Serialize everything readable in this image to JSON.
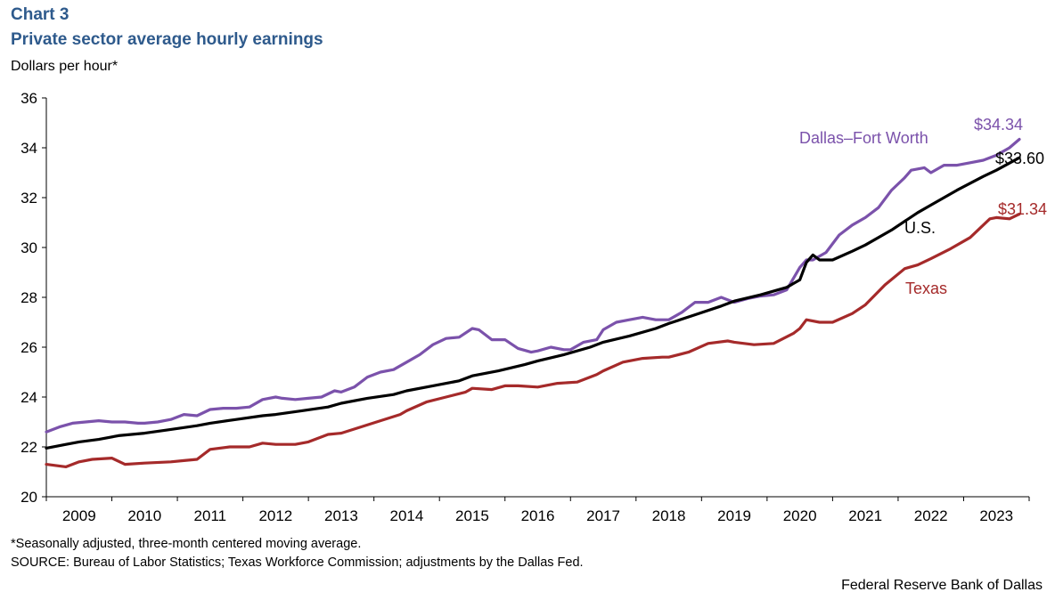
{
  "header": {
    "chart_number": "Chart 3",
    "title": "Private sector average hourly earnings",
    "y_unit": "Dollars per hour*"
  },
  "footer": {
    "footnote": "*Seasonally adjusted, three-month centered moving average.",
    "source": "SOURCE: Bureau of Labor Statistics; Texas Workforce Commission; adjustments by the Dallas Fed.",
    "credit": "Federal Reserve Bank of Dallas"
  },
  "chart_data": {
    "type": "line",
    "title": "Private sector average hourly earnings",
    "ylabel": "Dollars per hour*",
    "xlabel": "",
    "ylim": [
      20,
      36
    ],
    "y_ticks": [
      20,
      22,
      24,
      26,
      28,
      30,
      32,
      34,
      36
    ],
    "x_range": [
      2008.5,
      2023.5
    ],
    "x_tick_labels": [
      "2009",
      "2010",
      "2011",
      "2012",
      "2013",
      "2014",
      "2015",
      "2016",
      "2017",
      "2018",
      "2019",
      "2020",
      "2021",
      "2022",
      "2023"
    ],
    "grid": false,
    "series": [
      {
        "name": "Dallas–Fort Worth",
        "label": "Dallas–Fort Worth",
        "end_label": "$34.34",
        "color": "#7b52ab",
        "points": [
          [
            2008.5,
            22.6
          ],
          [
            2008.7,
            22.8
          ],
          [
            2008.9,
            22.95
          ],
          [
            2009.1,
            23.0
          ],
          [
            2009.3,
            23.05
          ],
          [
            2009.5,
            23.0
          ],
          [
            2009.7,
            23.0
          ],
          [
            2009.9,
            22.95
          ],
          [
            2010.0,
            22.95
          ],
          [
            2010.2,
            23.0
          ],
          [
            2010.4,
            23.1
          ],
          [
            2010.6,
            23.3
          ],
          [
            2010.8,
            23.25
          ],
          [
            2011.0,
            23.5
          ],
          [
            2011.2,
            23.55
          ],
          [
            2011.4,
            23.55
          ],
          [
            2011.6,
            23.6
          ],
          [
            2011.8,
            23.9
          ],
          [
            2012.0,
            24.0
          ],
          [
            2012.1,
            23.95
          ],
          [
            2012.3,
            23.9
          ],
          [
            2012.5,
            23.95
          ],
          [
            2012.7,
            24.0
          ],
          [
            2012.9,
            24.25
          ],
          [
            2013.0,
            24.2
          ],
          [
            2013.2,
            24.4
          ],
          [
            2013.4,
            24.8
          ],
          [
            2013.6,
            25.0
          ],
          [
            2013.8,
            25.1
          ],
          [
            2014.0,
            25.4
          ],
          [
            2014.2,
            25.7
          ],
          [
            2014.4,
            26.1
          ],
          [
            2014.6,
            26.35
          ],
          [
            2014.8,
            26.4
          ],
          [
            2015.0,
            26.75
          ],
          [
            2015.1,
            26.7
          ],
          [
            2015.3,
            26.3
          ],
          [
            2015.5,
            26.3
          ],
          [
            2015.7,
            25.95
          ],
          [
            2015.9,
            25.8
          ],
          [
            2016.0,
            25.85
          ],
          [
            2016.2,
            26.0
          ],
          [
            2016.4,
            25.9
          ],
          [
            2016.5,
            25.9
          ],
          [
            2016.7,
            26.2
          ],
          [
            2016.9,
            26.3
          ],
          [
            2017.0,
            26.7
          ],
          [
            2017.2,
            27.0
          ],
          [
            2017.4,
            27.1
          ],
          [
            2017.6,
            27.2
          ],
          [
            2017.8,
            27.1
          ],
          [
            2018.0,
            27.1
          ],
          [
            2018.2,
            27.4
          ],
          [
            2018.4,
            27.8
          ],
          [
            2018.6,
            27.8
          ],
          [
            2018.8,
            28.0
          ],
          [
            2019.0,
            27.8
          ],
          [
            2019.2,
            27.95
          ],
          [
            2019.4,
            28.05
          ],
          [
            2019.6,
            28.1
          ],
          [
            2019.8,
            28.3
          ],
          [
            2020.0,
            29.2
          ],
          [
            2020.1,
            29.5
          ],
          [
            2020.2,
            29.5
          ],
          [
            2020.4,
            29.8
          ],
          [
            2020.6,
            30.5
          ],
          [
            2020.8,
            30.9
          ],
          [
            2021.0,
            31.2
          ],
          [
            2021.2,
            31.6
          ],
          [
            2021.4,
            32.3
          ],
          [
            2021.6,
            32.8
          ],
          [
            2021.7,
            33.1
          ],
          [
            2021.9,
            33.2
          ],
          [
            2022.0,
            33.0
          ],
          [
            2022.2,
            33.3
          ],
          [
            2022.4,
            33.3
          ],
          [
            2022.6,
            33.4
          ],
          [
            2022.8,
            33.5
          ],
          [
            2023.0,
            33.7
          ],
          [
            2023.2,
            34.0
          ],
          [
            2023.35,
            34.34
          ]
        ]
      },
      {
        "name": "U.S.",
        "label": "U.S.",
        "end_label": "$33.60",
        "color": "#000000",
        "points": [
          [
            2008.5,
            21.95
          ],
          [
            2008.8,
            22.1
          ],
          [
            2009.0,
            22.2
          ],
          [
            2009.3,
            22.3
          ],
          [
            2009.6,
            22.45
          ],
          [
            2010.0,
            22.55
          ],
          [
            2010.4,
            22.7
          ],
          [
            2010.8,
            22.85
          ],
          [
            2011.0,
            22.95
          ],
          [
            2011.4,
            23.1
          ],
          [
            2011.8,
            23.25
          ],
          [
            2012.0,
            23.3
          ],
          [
            2012.4,
            23.45
          ],
          [
            2012.8,
            23.6
          ],
          [
            2013.0,
            23.75
          ],
          [
            2013.4,
            23.95
          ],
          [
            2013.8,
            24.1
          ],
          [
            2014.0,
            24.25
          ],
          [
            2014.4,
            24.45
          ],
          [
            2014.8,
            24.65
          ],
          [
            2015.0,
            24.85
          ],
          [
            2015.4,
            25.05
          ],
          [
            2015.8,
            25.3
          ],
          [
            2016.0,
            25.45
          ],
          [
            2016.4,
            25.7
          ],
          [
            2016.8,
            26.0
          ],
          [
            2017.0,
            26.2
          ],
          [
            2017.4,
            26.45
          ],
          [
            2017.8,
            26.75
          ],
          [
            2018.0,
            26.95
          ],
          [
            2018.4,
            27.3
          ],
          [
            2018.8,
            27.65
          ],
          [
            2019.0,
            27.85
          ],
          [
            2019.4,
            28.1
          ],
          [
            2019.8,
            28.4
          ],
          [
            2020.0,
            28.7
          ],
          [
            2020.1,
            29.4
          ],
          [
            2020.2,
            29.7
          ],
          [
            2020.3,
            29.5
          ],
          [
            2020.5,
            29.5
          ],
          [
            2020.8,
            29.85
          ],
          [
            2021.0,
            30.1
          ],
          [
            2021.4,
            30.7
          ],
          [
            2021.8,
            31.4
          ],
          [
            2022.0,
            31.7
          ],
          [
            2022.4,
            32.3
          ],
          [
            2022.8,
            32.85
          ],
          [
            2023.0,
            33.1
          ],
          [
            2023.35,
            33.6
          ]
        ]
      },
      {
        "name": "Texas",
        "label": "Texas",
        "end_label": "$31.34",
        "color": "#a52a2a",
        "points": [
          [
            2008.5,
            21.3
          ],
          [
            2008.8,
            21.2
          ],
          [
            2009.0,
            21.4
          ],
          [
            2009.2,
            21.5
          ],
          [
            2009.5,
            21.55
          ],
          [
            2009.7,
            21.3
          ],
          [
            2010.0,
            21.35
          ],
          [
            2010.4,
            21.4
          ],
          [
            2010.6,
            21.45
          ],
          [
            2010.8,
            21.5
          ],
          [
            2011.0,
            21.9
          ],
          [
            2011.3,
            22.0
          ],
          [
            2011.6,
            22.0
          ],
          [
            2011.8,
            22.15
          ],
          [
            2012.0,
            22.1
          ],
          [
            2012.3,
            22.1
          ],
          [
            2012.5,
            22.2
          ],
          [
            2012.8,
            22.5
          ],
          [
            2013.0,
            22.55
          ],
          [
            2013.3,
            22.8
          ],
          [
            2013.6,
            23.05
          ],
          [
            2013.9,
            23.3
          ],
          [
            2014.0,
            23.45
          ],
          [
            2014.3,
            23.8
          ],
          [
            2014.6,
            24.0
          ],
          [
            2014.9,
            24.2
          ],
          [
            2015.0,
            24.35
          ],
          [
            2015.3,
            24.3
          ],
          [
            2015.5,
            24.45
          ],
          [
            2015.7,
            24.45
          ],
          [
            2016.0,
            24.4
          ],
          [
            2016.3,
            24.55
          ],
          [
            2016.6,
            24.6
          ],
          [
            2016.9,
            24.9
          ],
          [
            2017.0,
            25.05
          ],
          [
            2017.3,
            25.4
          ],
          [
            2017.6,
            25.55
          ],
          [
            2017.9,
            25.6
          ],
          [
            2018.0,
            25.6
          ],
          [
            2018.3,
            25.8
          ],
          [
            2018.6,
            26.15
          ],
          [
            2018.9,
            26.25
          ],
          [
            2019.0,
            26.2
          ],
          [
            2019.3,
            26.1
          ],
          [
            2019.6,
            26.15
          ],
          [
            2019.9,
            26.55
          ],
          [
            2020.0,
            26.75
          ],
          [
            2020.1,
            27.1
          ],
          [
            2020.3,
            27.0
          ],
          [
            2020.5,
            27.0
          ],
          [
            2020.8,
            27.35
          ],
          [
            2021.0,
            27.7
          ],
          [
            2021.3,
            28.5
          ],
          [
            2021.6,
            29.15
          ],
          [
            2021.8,
            29.3
          ],
          [
            2022.0,
            29.55
          ],
          [
            2022.3,
            29.95
          ],
          [
            2022.6,
            30.4
          ],
          [
            2022.9,
            31.15
          ],
          [
            2023.0,
            31.2
          ],
          [
            2023.2,
            31.15
          ],
          [
            2023.35,
            31.34
          ]
        ]
      }
    ]
  }
}
